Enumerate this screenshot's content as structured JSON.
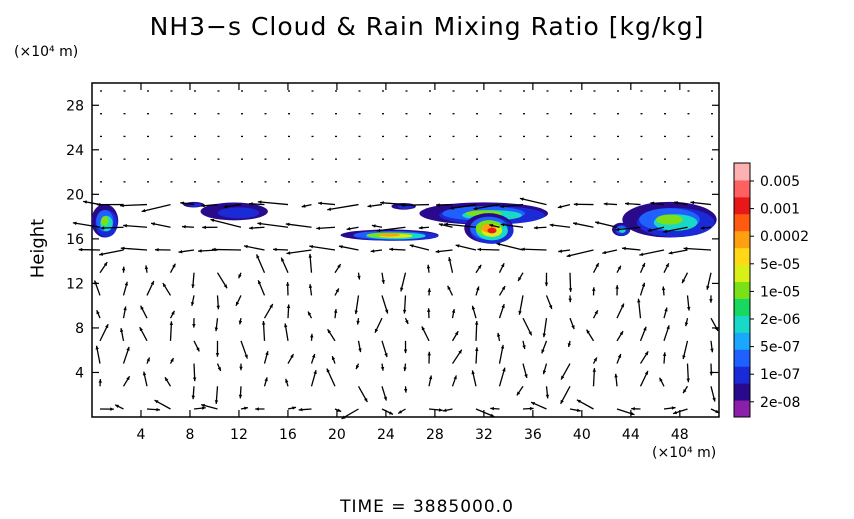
{
  "title": "NH3−s Cloud & Rain Mixing Ratio [kg/kg]",
  "y_unit": "(×10⁴ m)",
  "x_unit": "(×10⁴ m)",
  "ylabel": "Height",
  "time_label": "TIME  =  3885000.0",
  "chart_data": {
    "type": "heatmap",
    "title": "NH3−s Cloud & Rain Mixing Ratio [kg/kg]",
    "xlabel": "",
    "ylabel": "Height",
    "x_ticks": [
      "4",
      "8",
      "12",
      "16",
      "20",
      "24",
      "28",
      "32",
      "36",
      "40",
      "44",
      "48"
    ],
    "x_tick_values": [
      4,
      8,
      12,
      16,
      20,
      24,
      28,
      32,
      36,
      40,
      44,
      48
    ],
    "y_ticks": [
      "4",
      "8",
      "12",
      "16",
      "20",
      "24",
      "28"
    ],
    "y_tick_values": [
      4,
      8,
      12,
      16,
      20,
      24,
      28
    ],
    "xlim": [
      0,
      51.2
    ],
    "ylim": [
      0,
      30
    ],
    "grid": false,
    "overlay": "wind vectors",
    "colorbar": {
      "labels": [
        "0.005",
        "0.001",
        "0.0002",
        "5e-05",
        "1e-05",
        "2e-06",
        "5e-07",
        "1e-07",
        "2e-08"
      ],
      "colors": [
        "#8b1fa8",
        "#2a0a8c",
        "#1a2ad6",
        "#2060ff",
        "#1aa8ff",
        "#18d8c8",
        "#18d860",
        "#7ae018",
        "#d8f018",
        "#ffd818",
        "#ffa010",
        "#ff5a10",
        "#e81818",
        "#ff6060",
        "#ffb0b0"
      ]
    },
    "cloud_regions": [
      {
        "x": [
          0,
          2.2
        ],
        "y": [
          16.0,
          19.0
        ],
        "peak": "1e-05"
      },
      {
        "x": [
          7.5,
          9.2
        ],
        "y": [
          18.8,
          19.3
        ],
        "peak": "1e-07"
      },
      {
        "x": [
          9.0,
          14.5
        ],
        "y": [
          17.6,
          19.2
        ],
        "peak": "1e-07"
      },
      {
        "x": [
          24.5,
          26.5
        ],
        "y": [
          18.6,
          19.2
        ],
        "peak": "1e-07"
      },
      {
        "x": [
          20.5,
          28.5
        ],
        "y": [
          15.8,
          16.8
        ],
        "peak": "0.0002"
      },
      {
        "x": [
          27.0,
          37.5
        ],
        "y": [
          17.2,
          19.2
        ],
        "peak": "1e-05"
      },
      {
        "x": [
          30.5,
          34.5
        ],
        "y": [
          15.5,
          18.2
        ],
        "peak": "0.001"
      },
      {
        "x": [
          42.5,
          44.0
        ],
        "y": [
          16.2,
          17.4
        ],
        "peak": "2e-06"
      },
      {
        "x": [
          43.5,
          51.2
        ],
        "y": [
          16.0,
          19.2
        ],
        "peak": "1e-05"
      }
    ]
  }
}
